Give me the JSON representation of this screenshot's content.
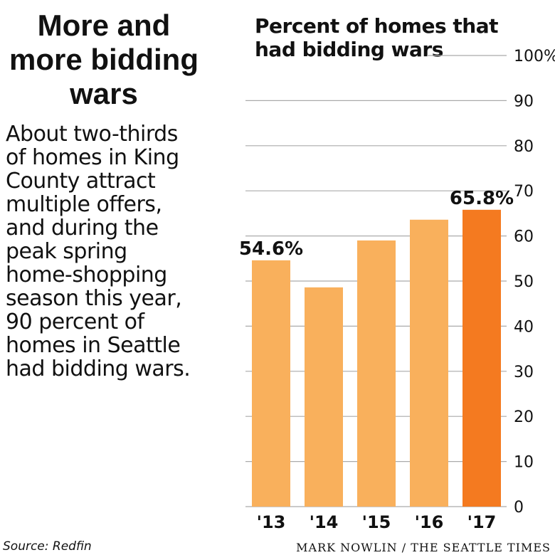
{
  "headline": "More and\nmore bidding\nwars",
  "blurb": "About two-thirds\nof homes in King\nCounty attract\nmultiple offers,\nand during the\npeak spring\nhome-shopping\nseason this year,\n90 percent of\nhomes in Seattle\nhad bidding wars.",
  "source": "Source: Redfin",
  "credit": "MARK NOWLIN / THE SEATTLE TIMES",
  "colors": {
    "bar": "#f9b05c",
    "bar_highlight": "#f47a20",
    "grid": "#aaaaaa",
    "text": "#111111"
  },
  "chart_data": {
    "type": "bar",
    "title": "Percent of homes that\nhad bidding wars",
    "categories": [
      "'13",
      "'14",
      "'15",
      "'16",
      "'17"
    ],
    "values": [
      54.6,
      48.6,
      59.0,
      63.6,
      65.8
    ],
    "highlight_index": 4,
    "value_labels": [
      "54.6%",
      "",
      "",
      "",
      "65.8%"
    ],
    "ylim": [
      0,
      100
    ],
    "yticks": [
      0,
      10,
      20,
      30,
      40,
      50,
      60,
      70,
      80,
      90,
      100
    ],
    "ytick_labels": [
      "0",
      "10",
      "20",
      "30",
      "40",
      "50",
      "60",
      "70",
      "80",
      "90",
      "100%"
    ],
    "grid": true
  }
}
